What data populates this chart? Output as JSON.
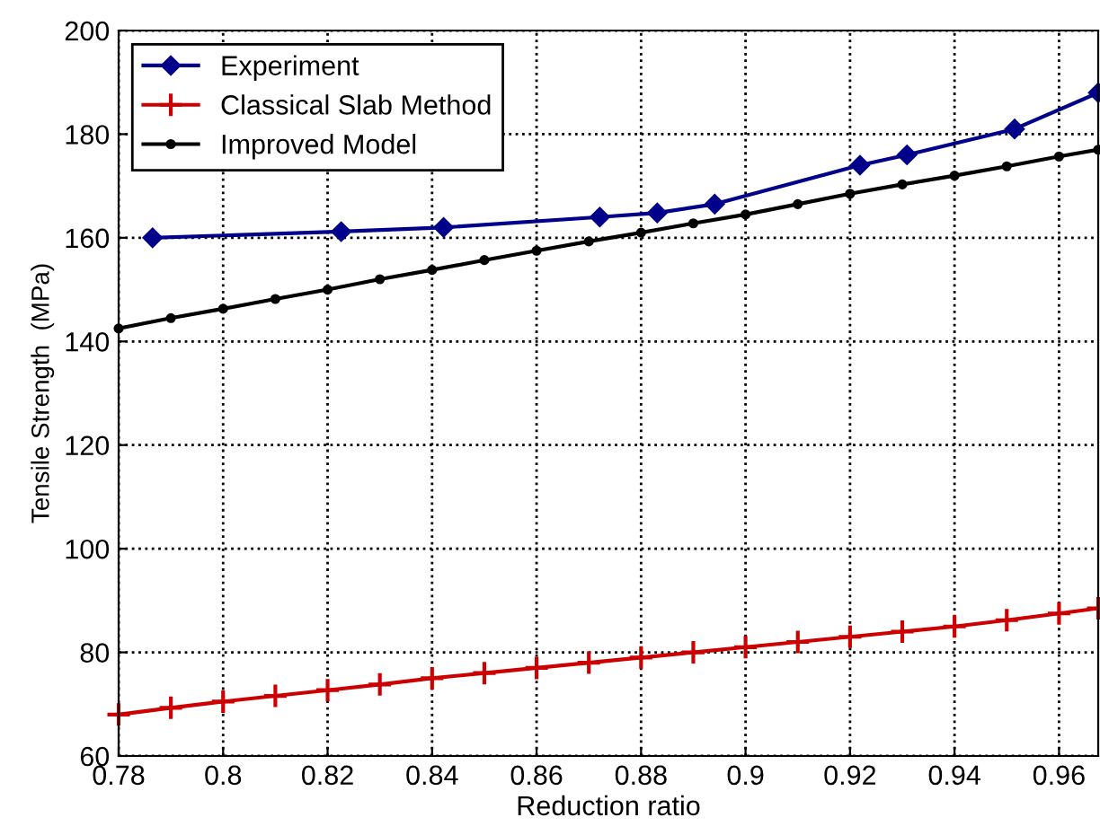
{
  "chart_data": {
    "type": "line",
    "xlabel": "Reduction ratio",
    "ylabel": "Tensile Strength  (MPa)",
    "xlim": [
      0.78,
      0.9675
    ],
    "xticks": [
      0.78,
      0.8,
      0.82,
      0.84,
      0.86,
      0.88,
      0.9,
      0.92,
      0.94,
      0.96
    ],
    "ylim": [
      60,
      200
    ],
    "yticks": [
      60,
      80,
      100,
      120,
      140,
      160,
      180,
      200
    ],
    "grid": true,
    "legend": "top left",
    "series": [
      {
        "name": "Experiment",
        "color": "#00008b",
        "marker": "diamond",
        "x": [
          0.7865,
          0.8226,
          0.8422,
          0.8721,
          0.8831,
          0.8941,
          0.9219,
          0.9309,
          0.9515,
          0.9675
        ],
        "values": [
          160,
          161.2,
          162,
          164,
          164.8,
          166.5,
          174,
          176,
          181,
          188
        ]
      },
      {
        "name": "Classical Slab Method",
        "color": "#cc0000",
        "marker": "cross",
        "x": [
          0.78,
          0.79,
          0.8,
          0.81,
          0.82,
          0.83,
          0.84,
          0.85,
          0.86,
          0.87,
          0.88,
          0.89,
          0.9,
          0.91,
          0.92,
          0.93,
          0.94,
          0.95,
          0.96,
          0.9675
        ],
        "values": [
          68,
          69.3,
          70.5,
          71.6,
          72.7,
          73.8,
          75,
          76,
          77,
          78,
          79,
          80,
          81,
          82,
          83,
          84,
          85,
          86.2,
          87.5,
          88.5
        ]
      },
      {
        "name": "Improved Model",
        "color": "#000000",
        "marker": "circle",
        "x": [
          0.78,
          0.79,
          0.8,
          0.81,
          0.82,
          0.83,
          0.84,
          0.85,
          0.86,
          0.87,
          0.88,
          0.89,
          0.9,
          0.91,
          0.92,
          0.93,
          0.94,
          0.95,
          0.96,
          0.9675
        ],
        "values": [
          142.5,
          144.5,
          146.3,
          148.2,
          150,
          152,
          153.8,
          155.7,
          157.5,
          159.3,
          161,
          162.8,
          164.5,
          166.5,
          168.5,
          170.3,
          172,
          173.8,
          175.7,
          177
        ]
      }
    ]
  }
}
